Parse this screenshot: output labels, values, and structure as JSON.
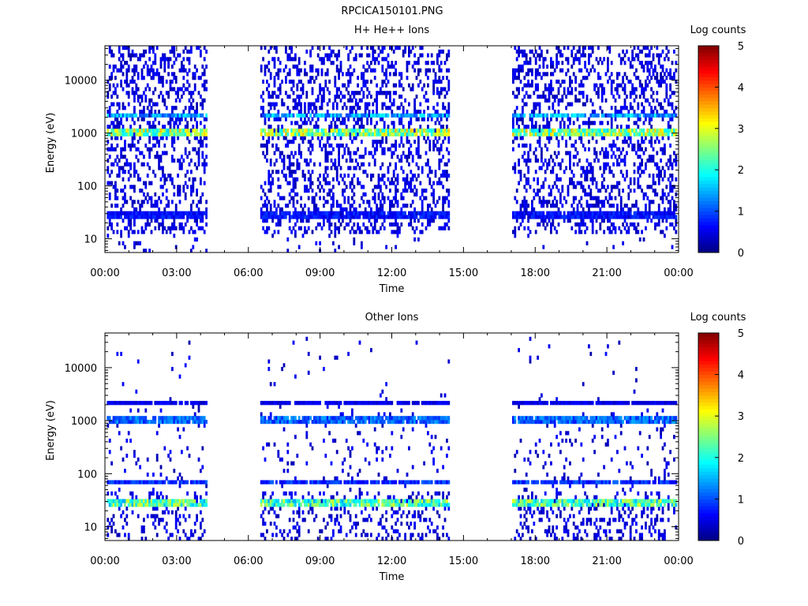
{
  "title": "RPCICA150101.PNG",
  "chart_data": [
    {
      "type": "heatmap",
      "title": "H+ He++ Ions",
      "xlabel": "Time",
      "ylabel": "Energy (eV)",
      "x_ticks": [
        "00:00",
        "03:00",
        "06:00",
        "09:00",
        "12:00",
        "15:00",
        "18:00",
        "21:00",
        "00:00"
      ],
      "xlim_hours": [
        0,
        24
      ],
      "y_scale": "log",
      "ylim": [
        5.5,
        45000
      ],
      "y_ticks": [
        10,
        100,
        1000,
        10000
      ],
      "y_tick_labels": [
        "10",
        "100",
        "1000",
        "10000"
      ],
      "colorbar": {
        "label": "Log counts",
        "range": [
          0,
          5
        ],
        "ticks": [
          "0",
          "1",
          "2",
          "3",
          "4",
          "5"
        ]
      },
      "data_intervals_hours": [
        [
          0.1,
          4.3
        ],
        [
          6.5,
          14.4
        ],
        [
          17.0,
          23.9
        ]
      ],
      "bands": [
        {
          "energy_eV": 1000,
          "log_counts": 3.0
        },
        {
          "energy_eV": 2200,
          "log_counts": 1.7
        },
        {
          "energy_eV": 28,
          "log_counts": 0.8
        }
      ]
    },
    {
      "type": "heatmap",
      "title": "Other Ions",
      "xlabel": "Time",
      "ylabel": "Energy (eV)",
      "x_ticks": [
        "00:00",
        "03:00",
        "06:00",
        "09:00",
        "12:00",
        "15:00",
        "18:00",
        "21:00",
        "00:00"
      ],
      "xlim_hours": [
        0,
        24
      ],
      "y_scale": "log",
      "ylim": [
        5.5,
        45000
      ],
      "y_ticks": [
        10,
        100,
        1000,
        10000
      ],
      "y_tick_labels": [
        "10",
        "100",
        "1000",
        "10000"
      ],
      "colorbar": {
        "label": "Log counts",
        "range": [
          0,
          5
        ],
        "ticks": [
          "0",
          "1",
          "2",
          "3",
          "4",
          "5"
        ]
      },
      "data_intervals_hours": [
        [
          0.1,
          4.3
        ],
        [
          6.5,
          14.4
        ],
        [
          17.0,
          23.9
        ]
      ],
      "bands": [
        {
          "energy_eV": 27,
          "log_counts": 2.6
        },
        {
          "energy_eV": 1000,
          "log_counts": 1.3
        },
        {
          "energy_eV": 2200,
          "log_counts": 0.6
        },
        {
          "energy_eV": 70,
          "log_counts": 1.0
        }
      ]
    }
  ]
}
